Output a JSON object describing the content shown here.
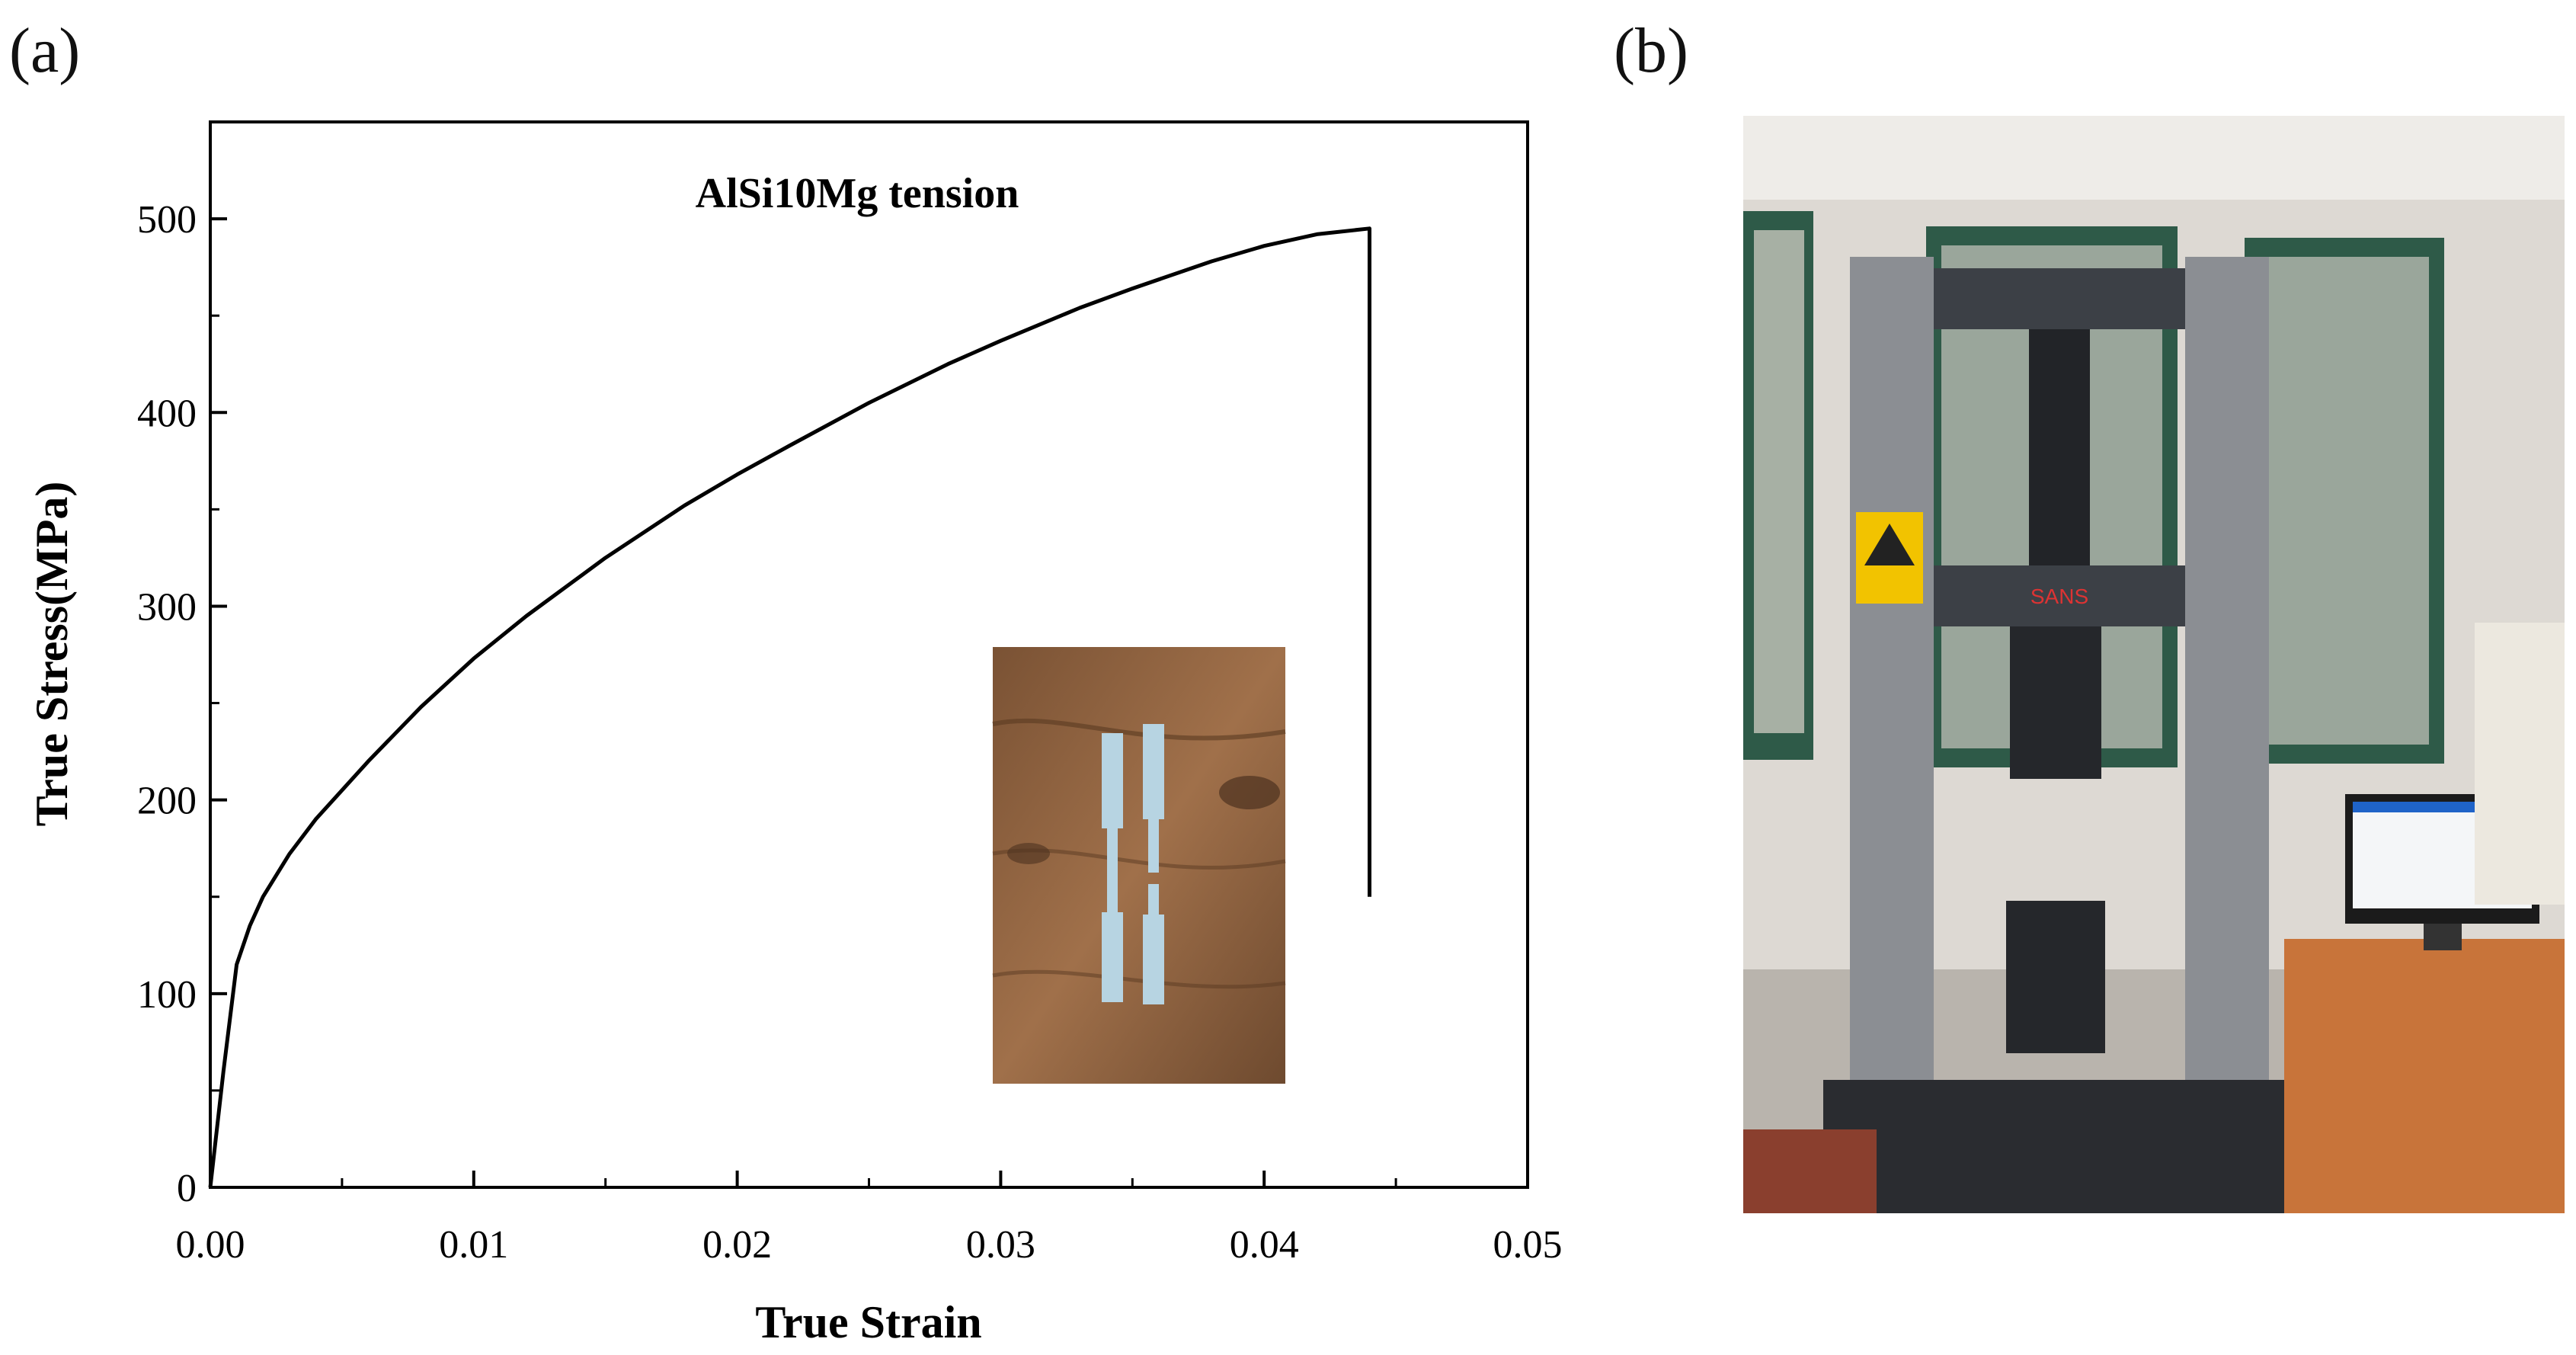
{
  "panels": {
    "a": "(a)",
    "b": "(b)"
  },
  "chart_data": {
    "type": "line",
    "title": "AlSi10Mg tension",
    "xlabel": "True Strain",
    "ylabel": "True Stress(MPa)",
    "xlim": [
      0,
      0.05
    ],
    "ylim": [
      0,
      550
    ],
    "x_ticks": [
      0,
      0.01,
      0.02,
      0.03,
      0.04,
      0.05
    ],
    "x_tick_labels": [
      "0.00",
      "0.01",
      "0.02",
      "0.03",
      "0.04",
      "0.05"
    ],
    "y_ticks": [
      0,
      100,
      200,
      300,
      400,
      500
    ],
    "y_tick_labels": [
      "0",
      "100",
      "200",
      "300",
      "400",
      "500"
    ],
    "grid": false,
    "legend": "none",
    "series": [
      {
        "x": [
          0,
          0.0005,
          0.001,
          0.0015,
          0.002,
          0.003,
          0.004,
          0.005,
          0.006,
          0.008,
          0.01,
          0.012,
          0.015,
          0.018,
          0.02,
          0.022,
          0.025,
          0.028,
          0.03,
          0.033,
          0.035,
          0.038,
          0.04,
          0.042,
          0.044,
          0.044,
          0.044
        ],
        "y": [
          0,
          60,
          115,
          135,
          150,
          172,
          190,
          205,
          220,
          248,
          273,
          295,
          325,
          352,
          368,
          383,
          405,
          425,
          437,
          454,
          464,
          478,
          486,
          492,
          495,
          340,
          150
        ]
      }
    ],
    "color": "#000000"
  },
  "inset": {
    "content": "tensile specimen photo"
  },
  "photo_b": {
    "label": "SANS",
    "content": "tensile testing machine photo"
  }
}
